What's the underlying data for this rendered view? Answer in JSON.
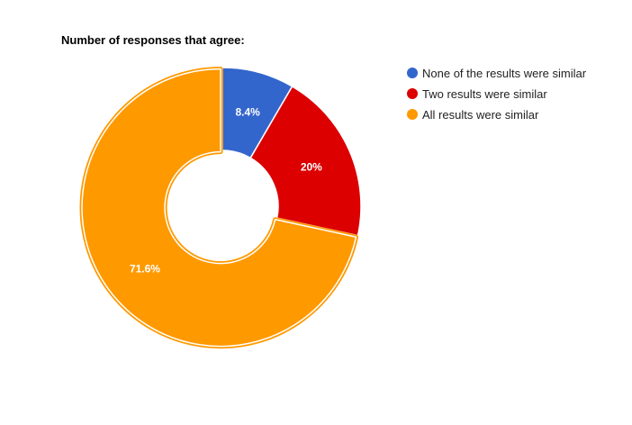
{
  "chart_data": {
    "type": "pie",
    "title": "Number of responses that agree:",
    "donut": true,
    "legend_position": "right",
    "slices": [
      {
        "label": "None of the results were similar",
        "value": 8.4,
        "display": "8.4%",
        "color": "#3366cc"
      },
      {
        "label": "Two results were similar",
        "value": 20,
        "display": "20%",
        "color": "#dc0000"
      },
      {
        "label": "All results were similar",
        "value": 71.6,
        "display": "71.6%",
        "color": "#ff9900",
        "offset": true
      }
    ]
  }
}
